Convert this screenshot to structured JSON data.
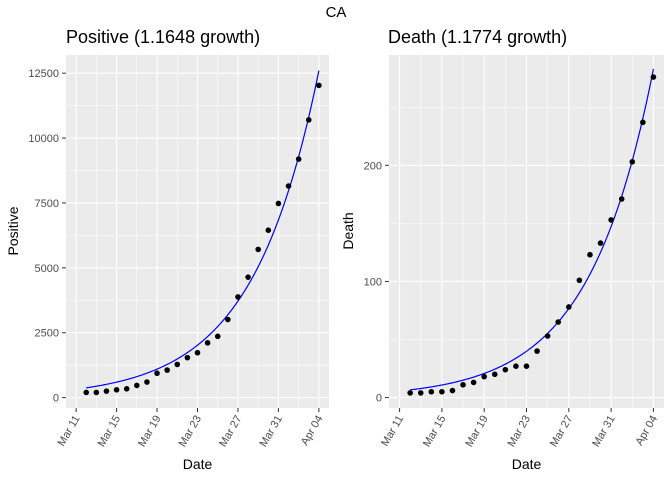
{
  "title": "CA",
  "colors": {
    "panel_bg": "#EBEBEB",
    "grid": "#FFFFFF",
    "points": "#000000",
    "fit_line": "#0000FF"
  },
  "chart_data": [
    {
      "type": "scatter",
      "title": "Positive (1.1648 growth)",
      "xlabel": "Date",
      "ylabel": "Positive",
      "x_ticks": [
        "Mar 11",
        "Mar 15",
        "Mar 19",
        "Mar 23",
        "Mar 27",
        "Mar 31",
        "Apr 04"
      ],
      "y_ticks": [
        0,
        2500,
        5000,
        7500,
        10000,
        12500
      ],
      "y_tick_labels": [
        "0",
        "2500",
        "5000",
        "7500",
        "10000",
        "12500"
      ],
      "xlim": [
        "2020-03-10",
        "2020-04-05"
      ],
      "ylim": [
        -400,
        13200
      ],
      "grid": true,
      "points": [
        {
          "x": "2020-03-12",
          "y": 200
        },
        {
          "x": "2020-03-13",
          "y": 200
        },
        {
          "x": "2020-03-14",
          "y": 250
        },
        {
          "x": "2020-03-15",
          "y": 300
        },
        {
          "x": "2020-03-16",
          "y": 340
        },
        {
          "x": "2020-03-17",
          "y": 470
        },
        {
          "x": "2020-03-18",
          "y": 600
        },
        {
          "x": "2020-03-19",
          "y": 940
        },
        {
          "x": "2020-03-20",
          "y": 1060
        },
        {
          "x": "2020-03-21",
          "y": 1280
        },
        {
          "x": "2020-03-22",
          "y": 1540
        },
        {
          "x": "2020-03-23",
          "y": 1730
        },
        {
          "x": "2020-03-24",
          "y": 2110
        },
        {
          "x": "2020-03-25",
          "y": 2360
        },
        {
          "x": "2020-03-26",
          "y": 3010
        },
        {
          "x": "2020-03-27",
          "y": 3880
        },
        {
          "x": "2020-03-28",
          "y": 4640
        },
        {
          "x": "2020-03-29",
          "y": 5710
        },
        {
          "x": "2020-03-30",
          "y": 6450
        },
        {
          "x": "2020-03-31",
          "y": 7480
        },
        {
          "x": "2020-04-01",
          "y": 8150
        },
        {
          "x": "2020-04-02",
          "y": 9190
        },
        {
          "x": "2020-04-03",
          "y": 10700
        },
        {
          "x": "2020-04-04",
          "y": 12030
        }
      ],
      "fit": {
        "type": "exponential",
        "growth": 1.1648,
        "x": "2020-04-04",
        "y": 12600
      }
    },
    {
      "type": "scatter",
      "title": "Death (1.1774 growth)",
      "xlabel": "Date",
      "ylabel": "Death",
      "x_ticks": [
        "Mar 11",
        "Mar 15",
        "Mar 19",
        "Mar 23",
        "Mar 27",
        "Mar 31",
        "Apr 04"
      ],
      "y_ticks": [
        0,
        100,
        200
      ],
      "y_tick_labels": [
        "0",
        "100",
        "200"
      ],
      "xlim": [
        "2020-03-10",
        "2020-04-05"
      ],
      "ylim": [
        -9,
        295
      ],
      "grid": true,
      "points": [
        {
          "x": "2020-03-12",
          "y": 4
        },
        {
          "x": "2020-03-13",
          "y": 4
        },
        {
          "x": "2020-03-14",
          "y": 5
        },
        {
          "x": "2020-03-15",
          "y": 5
        },
        {
          "x": "2020-03-16",
          "y": 6
        },
        {
          "x": "2020-03-17",
          "y": 11
        },
        {
          "x": "2020-03-18",
          "y": 13
        },
        {
          "x": "2020-03-19",
          "y": 18
        },
        {
          "x": "2020-03-20",
          "y": 20
        },
        {
          "x": "2020-03-21",
          "y": 24
        },
        {
          "x": "2020-03-22",
          "y": 27
        },
        {
          "x": "2020-03-23",
          "y": 27
        },
        {
          "x": "2020-03-24",
          "y": 40
        },
        {
          "x": "2020-03-25",
          "y": 53
        },
        {
          "x": "2020-03-26",
          "y": 65
        },
        {
          "x": "2020-03-27",
          "y": 78
        },
        {
          "x": "2020-03-28",
          "y": 101
        },
        {
          "x": "2020-03-29",
          "y": 123
        },
        {
          "x": "2020-03-30",
          "y": 133
        },
        {
          "x": "2020-03-31",
          "y": 153
        },
        {
          "x": "2020-04-01",
          "y": 171
        },
        {
          "x": "2020-04-02",
          "y": 203
        },
        {
          "x": "2020-04-03",
          "y": 237
        },
        {
          "x": "2020-04-04",
          "y": 276
        }
      ],
      "fit": {
        "type": "exponential",
        "growth": 1.1774,
        "x": "2020-04-04",
        "y": 283
      }
    }
  ]
}
